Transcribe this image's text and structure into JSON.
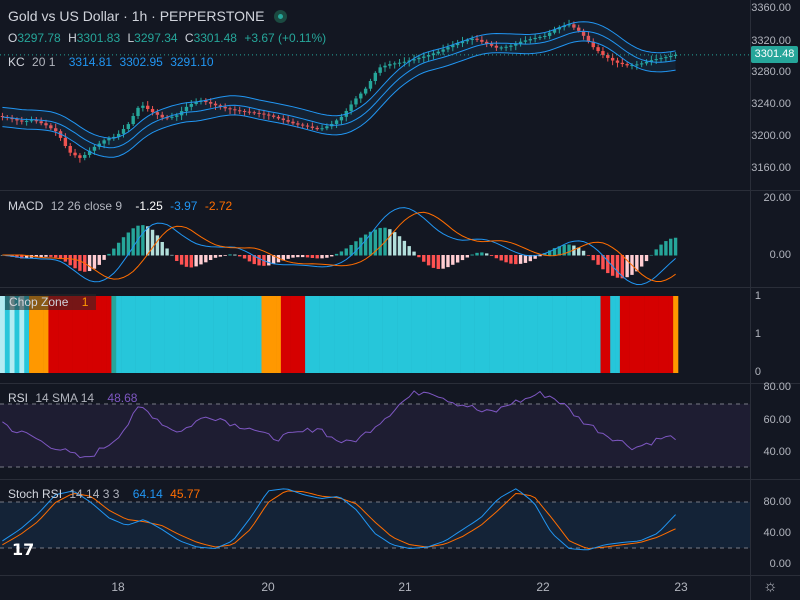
{
  "header": {
    "symbol_title": "Gold vs US Dollar · 1h · PEPPERSTONE",
    "o_label": "O",
    "o_value": "3297.78",
    "h_label": "H",
    "h_value": "3301.83",
    "l_label": "L",
    "l_value": "3297.34",
    "c_label": "C",
    "c_value": "3301.48",
    "change": "+3.67 (+0.11%)",
    "market_status_icon": "market-open-dot"
  },
  "kc": {
    "label": "KC",
    "params": "20 1",
    "v1": "3314.81",
    "v2": "3302.95",
    "v3": "3291.10"
  },
  "macd": {
    "label": "MACD",
    "params": "12 26 close 9",
    "v1": "-1.25",
    "v2": "-3.97",
    "v3": "-2.72"
  },
  "chop": {
    "label": "Chop Zone",
    "value": "1"
  },
  "rsi": {
    "label": "RSI",
    "params": "14 SMA 14",
    "value": "48.68"
  },
  "stoch": {
    "label": "Stoch RSI",
    "params": "14 14 3 3",
    "v1": "64.14",
    "v2": "45.77"
  },
  "price_axis": [
    "3360.00",
    "3320.00",
    "3280.00",
    "3240.00",
    "3200.00",
    "3160.00"
  ],
  "last_price": "3301.48",
  "macd_axis": [
    "20.00",
    "0.00"
  ],
  "chop_axis": [
    "1",
    "1",
    "0"
  ],
  "rsi_axis": [
    "80.00",
    "60.00",
    "40.00"
  ],
  "stoch_axis": [
    "80.00",
    "40.00",
    "0.00"
  ],
  "time_axis": [
    "18",
    "20",
    "21",
    "22",
    "23"
  ],
  "colors": {
    "up": "#26a69a",
    "down": "#ef5350",
    "kc": "#2962ff",
    "macd": "#2196f3",
    "signal": "#ff6d00",
    "rsi": "#7e57c2",
    "chop_cyan": "#26c6da",
    "chop_red": "#d50000",
    "chop_orange": "#ff9800",
    "chop_green": "#26a69a"
  },
  "chart_data": {
    "type": "candlestick",
    "price_close_approx": [
      3225,
      3222,
      3218,
      3220,
      3214,
      3205,
      3180,
      3172,
      3185,
      3195,
      3200,
      3215,
      3240,
      3230,
      3222,
      3225,
      3238,
      3245,
      3240,
      3235,
      3232,
      3230,
      3228,
      3225,
      3220,
      3215,
      3212,
      3208,
      3214,
      3225,
      3245,
      3260,
      3285,
      3290,
      3292,
      3296,
      3300,
      3305,
      3312,
      3318,
      3322,
      3316,
      3310,
      3312,
      3318,
      3322,
      3325,
      3335,
      3340,
      3330,
      3312,
      3300,
      3292,
      3288,
      3290,
      3295,
      3298,
      3301.48
    ],
    "rsi_approx": [
      58,
      52,
      50,
      45,
      42,
      38,
      35,
      40,
      46,
      55,
      68,
      62,
      55,
      52,
      58,
      62,
      60,
      56,
      55,
      50,
      48,
      50,
      52,
      55,
      48,
      45,
      48,
      55,
      62,
      70,
      76,
      78,
      74,
      70,
      68,
      64,
      65,
      70,
      72,
      76,
      74,
      68,
      60,
      55,
      50,
      46,
      42,
      45,
      48,
      48.68
    ],
    "stoch_k_approx": [
      30,
      45,
      65,
      90,
      95,
      80,
      60,
      50,
      58,
      45,
      30,
      22,
      20,
      30,
      60,
      95,
      98,
      90,
      85,
      88,
      70,
      40,
      25,
      20,
      22,
      30,
      45,
      60,
      85,
      98,
      80,
      40,
      20,
      18,
      25,
      28,
      30,
      40,
      64.14
    ],
    "stoch_d_approx": [
      25,
      38,
      55,
      80,
      92,
      88,
      70,
      58,
      55,
      50,
      38,
      28,
      22,
      25,
      45,
      80,
      95,
      94,
      88,
      86,
      78,
      55,
      35,
      25,
      22,
      26,
      36,
      50,
      70,
      92,
      88,
      60,
      30,
      20,
      22,
      25,
      28,
      35,
      45.77
    ]
  }
}
